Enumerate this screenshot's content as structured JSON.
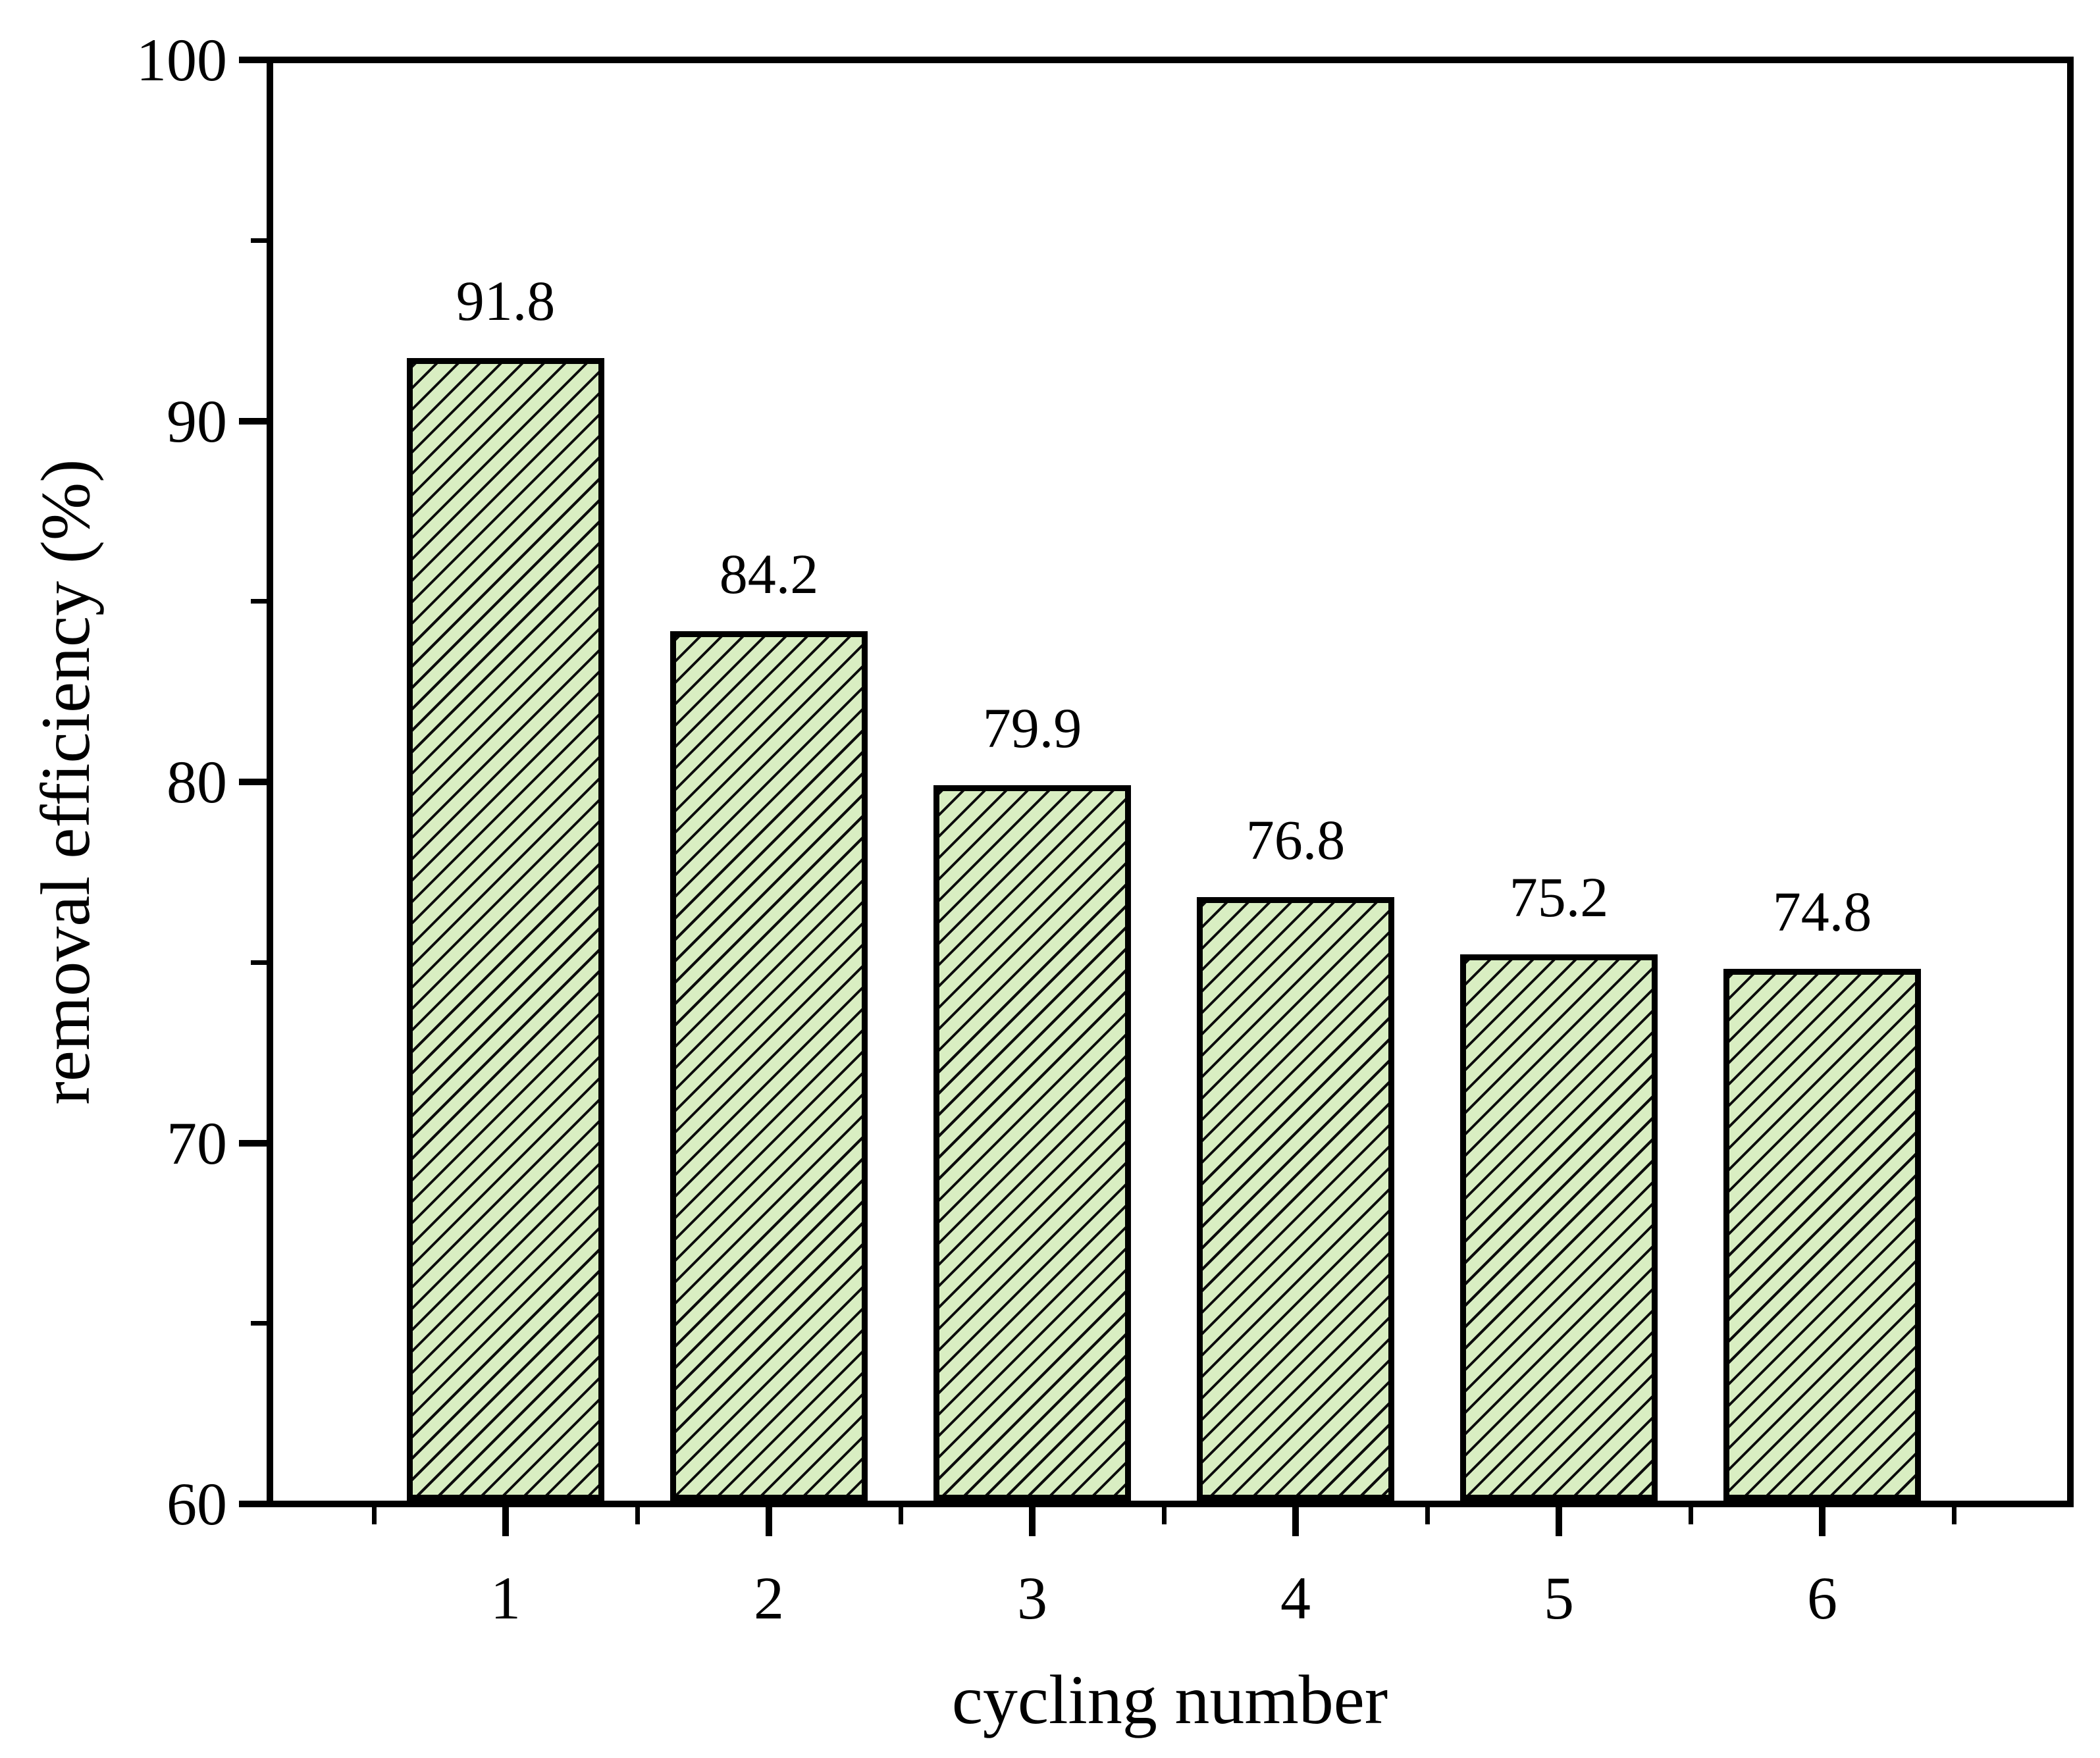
{
  "figure": {
    "background": "#ffffff",
    "text_color": "#000000"
  },
  "chart_data": {
    "type": "bar",
    "title": "",
    "categories": [
      "1",
      "2",
      "3",
      "4",
      "5",
      "6"
    ],
    "values": [
      91.8,
      84.2,
      79.9,
      76.8,
      75.2,
      74.8
    ],
    "bar_labels": [
      "91.8",
      "84.2",
      "79.9",
      "76.8",
      "75.2",
      "74.8"
    ],
    "xlabel": "cycling number",
    "ylabel": "removal efficiency (%)",
    "ylim": [
      60,
      100
    ],
    "y_major_ticks": [
      60,
      70,
      80,
      90,
      100
    ],
    "y_tick_labels": [
      "60",
      "70",
      "80",
      "90",
      "100"
    ],
    "y_minor_ticks": [
      65,
      75,
      85,
      95
    ],
    "x_minor_positions": [
      0.5,
      1.5,
      2.5,
      3.5,
      4.5,
      5.5,
      6.5
    ],
    "grid": false,
    "legend": null,
    "frame": "full-box",
    "bar_fill_color": "#d9eec2",
    "bar_edge_color": "#000000",
    "hatch_style": "forward-diagonal"
  }
}
